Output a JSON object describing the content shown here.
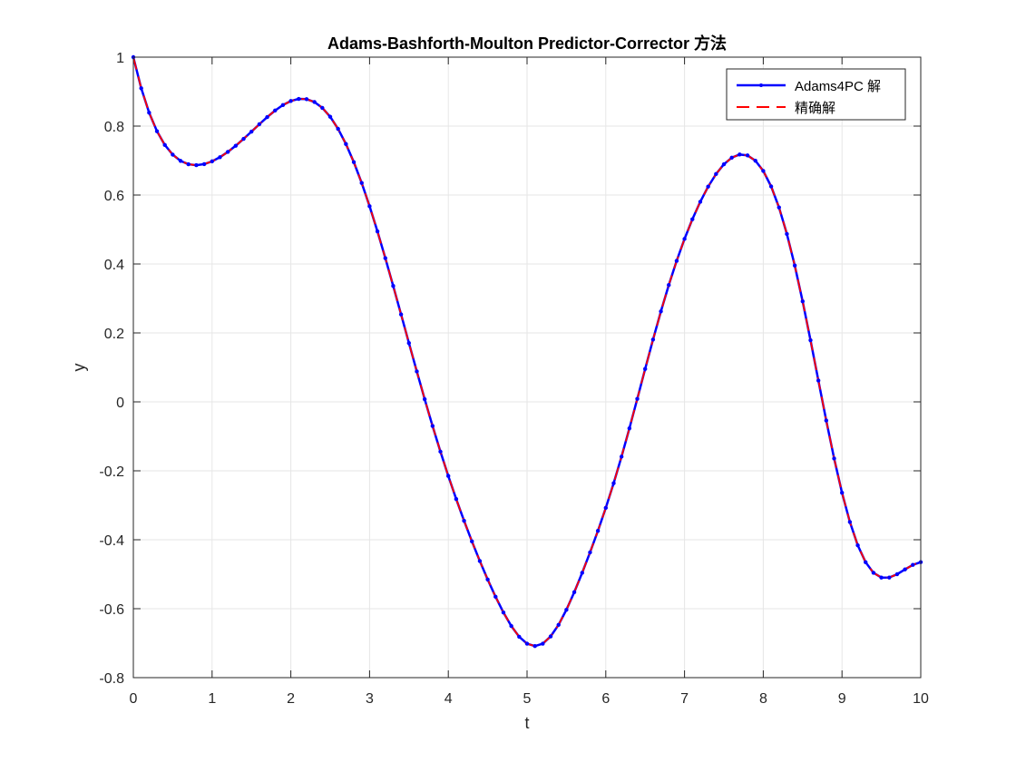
{
  "chart_data": {
    "type": "line",
    "title": "Adams-Bashforth-Moulton Predictor-Corrector 方法",
    "xlabel": "t",
    "ylabel": "y",
    "xlim": [
      0,
      10
    ],
    "ylim": [
      -0.8,
      1
    ],
    "xticks": [
      "0",
      "1",
      "2",
      "3",
      "4",
      "5",
      "6",
      "7",
      "8",
      "9",
      "10"
    ],
    "yticks": [
      "-0.8",
      "-0.6",
      "-0.4",
      "-0.2",
      "0",
      "0.2",
      "0.4",
      "0.6",
      "0.8",
      "1"
    ],
    "grid": true,
    "legend_position": "top-right",
    "series": [
      {
        "name": "Adams4PC 解",
        "color": "#0000ff",
        "style": "solid-with-point-markers",
        "x": [
          0,
          0.1,
          0.2,
          0.3,
          0.4,
          0.5,
          0.6,
          0.7,
          0.8,
          0.9,
          1.0,
          1.1,
          1.2,
          1.3,
          1.4,
          1.5,
          1.6,
          1.7,
          1.8,
          1.9,
          2.0,
          2.1,
          2.2,
          2.3,
          2.4,
          2.5,
          2.6,
          2.7,
          2.8,
          2.9,
          3.0,
          3.1,
          3.2,
          3.3,
          3.4,
          3.5,
          3.6,
          3.7,
          3.8,
          3.9,
          4.0,
          4.1,
          4.2,
          4.3,
          4.4,
          4.5,
          4.6,
          4.7,
          4.8,
          4.9,
          5.0,
          5.1,
          5.2,
          5.3,
          5.4,
          5.5,
          5.6,
          5.7,
          5.8,
          5.9,
          6.0,
          6.1,
          6.2,
          6.3,
          6.4,
          6.5,
          6.6,
          6.7,
          6.8,
          6.9,
          7.0,
          7.1,
          7.2,
          7.3,
          7.4,
          7.5,
          7.6,
          7.7,
          7.8,
          7.9,
          8.0,
          8.1,
          8.2,
          8.3,
          8.4,
          8.5,
          8.6,
          8.7,
          8.8,
          8.9,
          9.0,
          9.1,
          9.2,
          9.3,
          9.4,
          9.5,
          9.6,
          9.7,
          9.8,
          9.9,
          10.0
        ],
        "y": [
          1.0,
          0.9098,
          0.8391,
          0.7851,
          0.7452,
          0.7171,
          0.699,
          0.6893,
          0.6866,
          0.6897,
          0.6977,
          0.7098,
          0.7251,
          0.743,
          0.7629,
          0.7839,
          0.8053,
          0.8261,
          0.8451,
          0.8611,
          0.8728,
          0.8789,
          0.8782,
          0.8698,
          0.8529,
          0.827,
          0.792,
          0.748,
          0.6954,
          0.635,
          0.5677,
          0.4946,
          0.417,
          0.3363,
          0.2537,
          0.1706,
          0.0883,
          0.0078,
          -0.07,
          -0.1444,
          -0.215,
          -0.2818,
          -0.345,
          -0.4049,
          -0.4617,
          -0.5153,
          -0.5654,
          -0.6109,
          -0.6503,
          -0.6814,
          -0.7015,
          -0.7085,
          -0.7014,
          -0.6803,
          -0.6468,
          -0.603,
          -0.552,
          -0.496,
          -0.4366,
          -0.3741,
          -0.3075,
          -0.236,
          -0.1589,
          -0.0768,
          0.0088,
          0.0955,
          0.1808,
          0.2625,
          0.3389,
          0.4091,
          0.4727,
          0.5299,
          0.5805,
          0.6244,
          0.6609,
          0.6893,
          0.7085,
          0.7175,
          0.715,
          0.6996,
          0.67,
          0.625,
          0.564,
          0.4871,
          0.3955,
          0.2916,
          0.1789,
          0.0619,
          -0.0542,
          -0.1643,
          -0.2636,
          -0.3484,
          -0.4161,
          -0.4653,
          -0.496,
          -0.5097,
          -0.5096,
          -0.5,
          -0.486,
          -0.4728,
          -0.465
        ]
      },
      {
        "name": "精确解",
        "color": "#ff0000",
        "style": "dashed"
      }
    ]
  }
}
